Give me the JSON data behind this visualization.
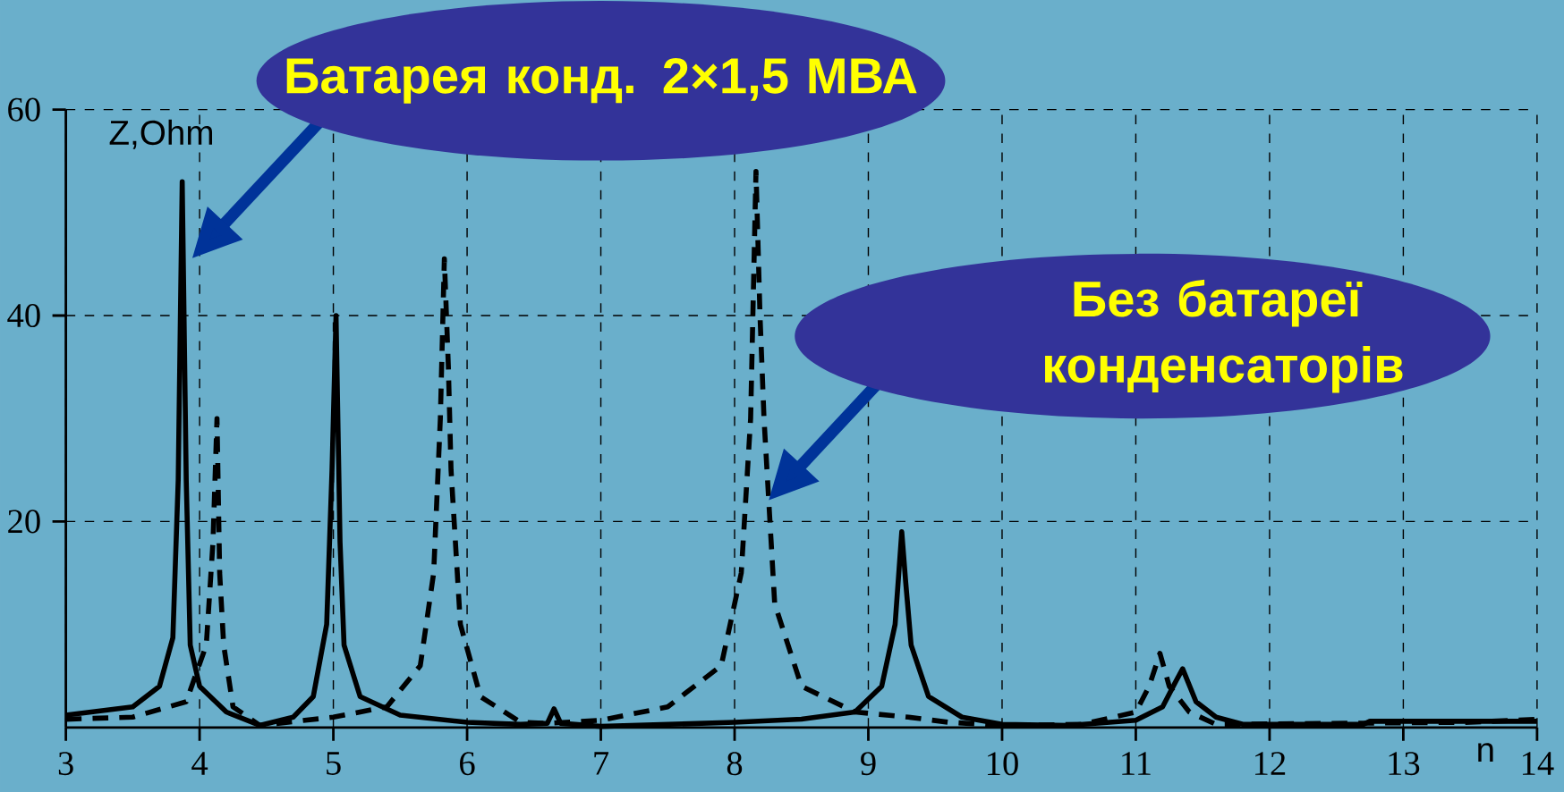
{
  "chart_data": {
    "type": "line",
    "xlabel": "n",
    "ylabel": "Z,Ohm",
    "xlim": [
      3,
      14
    ],
    "ylim": [
      0,
      60
    ],
    "xticks": [
      3,
      4,
      5,
      6,
      7,
      8,
      9,
      10,
      11,
      12,
      13,
      14
    ],
    "yticks": [
      20,
      40,
      60
    ],
    "grid": true,
    "marker": "none",
    "series": [
      {
        "color": "#000000",
        "line_style": "solid",
        "x": [
          3,
          3.5,
          3.7,
          3.8,
          3.84,
          3.87,
          3.9,
          3.93,
          4.0,
          4.2,
          4.45,
          4.7,
          4.85,
          4.95,
          4.99,
          5.02,
          5.05,
          5.08,
          5.2,
          5.5,
          6.0,
          6.4,
          6.6,
          6.65,
          6.7,
          7.0,
          8.0,
          8.5,
          8.9,
          9.1,
          9.2,
          9.25,
          9.28,
          9.32,
          9.45,
          9.7,
          10.0,
          10.5,
          11.0,
          11.2,
          11.3,
          11.35,
          11.45,
          11.6,
          11.8,
          12.7,
          12.75,
          14
        ],
        "values": [
          1.2,
          2,
          4,
          8.7,
          24,
          53,
          24,
          8,
          4,
          1.5,
          0.2,
          1,
          3,
          10,
          25,
          40,
          18,
          8,
          3,
          1.2,
          0.5,
          0.3,
          0.4,
          1.8,
          0.4,
          0.1,
          0.5,
          0.8,
          1.5,
          4,
          10,
          19,
          14,
          8,
          3,
          1,
          0.3,
          0.2,
          0.7,
          2,
          4.5,
          5.7,
          2.5,
          1,
          0.3,
          0.3,
          0.6,
          0.6
        ]
      },
      {
        "color": "#000000",
        "line_style": "dashed",
        "x": [
          3,
          3.5,
          3.9,
          4.05,
          4.1,
          4.13,
          4.15,
          4.18,
          4.25,
          4.45,
          5.0,
          5.4,
          5.65,
          5.75,
          5.8,
          5.83,
          5.86,
          5.88,
          5.95,
          6.1,
          6.4,
          6.6,
          7.0,
          7.5,
          7.9,
          8.05,
          8.12,
          8.16,
          8.19,
          8.22,
          8.3,
          8.5,
          8.9,
          9.3,
          9.6,
          10.0,
          10.6,
          11.0,
          11.1,
          11.18,
          11.25,
          11.4,
          11.6,
          13.5,
          14
        ],
        "values": [
          0.8,
          1,
          2.5,
          8,
          18,
          30,
          15,
          8,
          2,
          0.2,
          1,
          2,
          6,
          15,
          30,
          45.5,
          35,
          25,
          10,
          3,
          0.5,
          0.4,
          0.7,
          2,
          6,
          15,
          30,
          54,
          40,
          30,
          12,
          4,
          1.5,
          1,
          0.5,
          0.2,
          0.3,
          1.5,
          4,
          7.2,
          4,
          1.5,
          0.3,
          0.5,
          0.8
        ]
      }
    ],
    "annotations": [
      "Батарея конд. 2×1,5 МВА",
      "Без батареї конденсаторів"
    ]
  }
}
